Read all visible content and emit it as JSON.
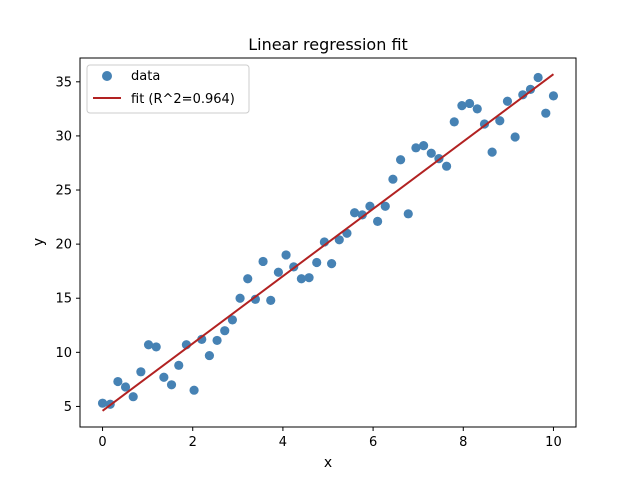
{
  "chart_data": {
    "type": "scatter",
    "title": "Linear regression fit",
    "xlabel": "x",
    "ylabel": "y",
    "xlim": [
      -0.5,
      10.5
    ],
    "ylim": [
      3.1,
      37.2
    ],
    "xticks": [
      0,
      2,
      4,
      6,
      8,
      10
    ],
    "yticks": [
      5,
      10,
      15,
      20,
      25,
      30,
      35
    ],
    "grid": false,
    "legend_position": "top-left",
    "series": [
      {
        "name": "data",
        "kind": "scatter",
        "color": "#4682b4",
        "x": [
          0.0,
          0.17,
          0.34,
          0.51,
          0.68,
          0.85,
          1.02,
          1.19,
          1.36,
          1.53,
          1.69,
          1.86,
          2.03,
          2.2,
          2.37,
          2.54,
          2.71,
          2.88,
          3.05,
          3.22,
          3.39,
          3.56,
          3.73,
          3.9,
          4.07,
          4.24,
          4.41,
          4.58,
          4.75,
          4.92,
          5.08,
          5.25,
          5.42,
          5.59,
          5.76,
          5.93,
          6.1,
          6.27,
          6.44,
          6.61,
          6.78,
          6.95,
          7.12,
          7.29,
          7.46,
          7.63,
          7.8,
          7.97,
          8.14,
          8.31,
          8.47,
          8.64,
          8.81,
          8.98,
          9.15,
          9.32,
          9.49,
          9.66,
          9.83,
          10.0
        ],
        "y": [
          5.3,
          5.2,
          7.3,
          6.8,
          5.9,
          8.2,
          10.7,
          10.5,
          7.7,
          7.0,
          8.8,
          10.7,
          6.5,
          11.2,
          9.7,
          11.1,
          12.0,
          13.0,
          15.0,
          16.8,
          14.9,
          18.4,
          14.8,
          17.4,
          19.0,
          17.9,
          16.8,
          16.9,
          18.3,
          20.2,
          18.2,
          20.4,
          21.0,
          22.9,
          22.7,
          23.5,
          22.1,
          23.5,
          26.0,
          27.8,
          22.8,
          28.9,
          29.1,
          28.4,
          27.9,
          27.2,
          31.3,
          32.8,
          33.0,
          32.5,
          31.1,
          28.5,
          31.4,
          33.2,
          29.9,
          33.8,
          34.3,
          35.4,
          32.1,
          33.7
        ]
      },
      {
        "name": "fit (R^2=0.964)",
        "kind": "line",
        "color": "#b22222",
        "x": [
          0,
          10
        ],
        "y": [
          4.6,
          35.7
        ]
      }
    ]
  }
}
